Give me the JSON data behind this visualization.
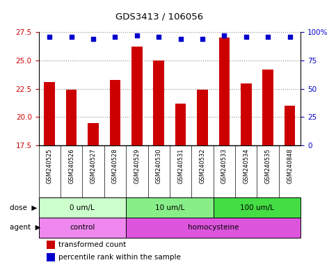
{
  "title": "GDS3413 / 106056",
  "samples": [
    "GSM240525",
    "GSM240526",
    "GSM240527",
    "GSM240528",
    "GSM240529",
    "GSM240530",
    "GSM240531",
    "GSM240532",
    "GSM240533",
    "GSM240534",
    "GSM240535",
    "GSM240848"
  ],
  "bar_values": [
    23.1,
    22.4,
    19.5,
    23.3,
    26.2,
    25.0,
    21.2,
    22.4,
    27.0,
    23.0,
    24.2,
    21.0
  ],
  "percentile_values": [
    96,
    96,
    94,
    96,
    97,
    96,
    94,
    94,
    97,
    96,
    96,
    96
  ],
  "bar_color": "#cc0000",
  "percentile_color": "#0000cc",
  "ylim_left": [
    17.5,
    27.5
  ],
  "yticks_left": [
    17.5,
    20.0,
    22.5,
    25.0,
    27.5
  ],
  "yticks_right": [
    0,
    25,
    50,
    75,
    100
  ],
  "ylabel_left_color": "#cc0000",
  "ylabel_right_color": "#0000cc",
  "dose_groups": [
    {
      "label": "0 um/L",
      "start": 0,
      "end": 4,
      "color": "#ccffcc"
    },
    {
      "label": "10 um/L",
      "start": 4,
      "end": 8,
      "color": "#88ee88"
    },
    {
      "label": "100 um/L",
      "start": 8,
      "end": 12,
      "color": "#44dd44"
    }
  ],
  "agent_groups": [
    {
      "label": "control",
      "start": 0,
      "end": 4,
      "color": "#ee88ee"
    },
    {
      "label": "homocysteine",
      "start": 4,
      "end": 12,
      "color": "#dd55dd"
    }
  ],
  "dose_label": "dose",
  "agent_label": "agent",
  "legend_bar_label": "transformed count",
  "legend_pct_label": "percentile rank within the sample",
  "grid_color": "#888888",
  "sample_bg_color": "#dddddd",
  "plot_bg_color": "#ffffff"
}
